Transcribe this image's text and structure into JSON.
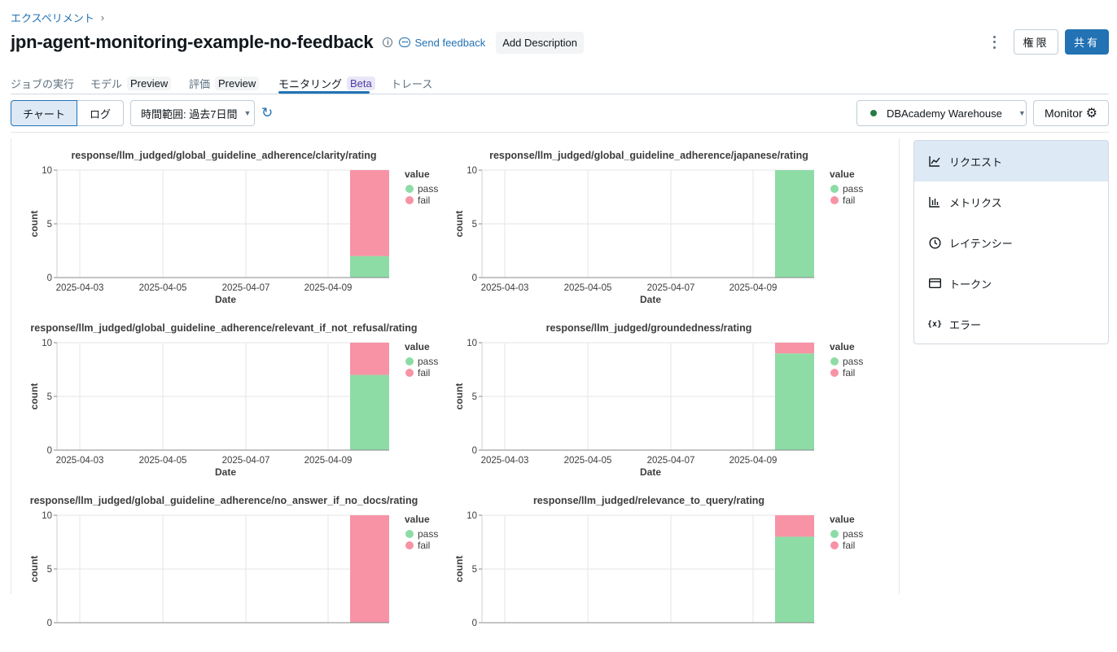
{
  "breadcrumb": {
    "label": "エクスペリメント",
    "chevron": "›"
  },
  "header": {
    "title": "jpn-agent-monitoring-example-no-feedback",
    "feedback_label": "Send feedback",
    "add_description_label": "Add Description",
    "permissions_label": "権限",
    "share_label": "共有"
  },
  "tabs": [
    {
      "label": "ジョブの実行",
      "badge": ""
    },
    {
      "label": "モデル",
      "badge": "Preview"
    },
    {
      "label": "評価",
      "badge": "Preview"
    },
    {
      "label": "モニタリング",
      "badge": "Beta"
    },
    {
      "label": "トレース",
      "badge": ""
    }
  ],
  "toolbar": {
    "chart_label": "チャート",
    "log_label": "ログ",
    "time_range_label": "時間範囲: 過去7日間",
    "warehouse_label": "DBAcademy Warehouse",
    "monitor_label": "Monitor"
  },
  "colors": {
    "accent": "#2272b4",
    "pass": "#8ddca6",
    "fail": "#f793a5",
    "warehouse_status": "#277c43"
  },
  "sidebar": {
    "items": [
      {
        "label": "リクエスト",
        "icon": "line-chart-icon",
        "active": true
      },
      {
        "label": "メトリクス",
        "icon": "bar-chart-icon",
        "active": false
      },
      {
        "label": "レイテンシー",
        "icon": "clock-icon",
        "active": false
      },
      {
        "label": "トークン",
        "icon": "token-card-icon",
        "active": false
      },
      {
        "label": "エラー",
        "icon": "function-icon",
        "active": false
      }
    ]
  },
  "chart_common": {
    "xlabel": "Date",
    "ylabel": "count",
    "x_ticks": [
      "2025-04-03",
      "2025-04-05",
      "2025-04-07",
      "2025-04-09"
    ],
    "y_ticks": [
      "0",
      "5",
      "10"
    ],
    "legend_title": "value",
    "legend": [
      "pass",
      "fail"
    ]
  },
  "chart_data": [
    {
      "type": "bar",
      "title": "response/llm_judged/global_guideline_adherence/clarity/rating",
      "xlabel": "Date",
      "ylabel": "count",
      "ylim": [
        0,
        10
      ],
      "categories": [
        "2025-04-10"
      ],
      "series": [
        {
          "name": "pass",
          "values": [
            2
          ]
        },
        {
          "name": "fail",
          "values": [
            8
          ]
        }
      ]
    },
    {
      "type": "bar",
      "title": "response/llm_judged/global_guideline_adherence/japanese/rating",
      "xlabel": "Date",
      "ylabel": "count",
      "ylim": [
        0,
        10
      ],
      "categories": [
        "2025-04-10"
      ],
      "series": [
        {
          "name": "pass",
          "values": [
            10
          ]
        },
        {
          "name": "fail",
          "values": [
            0
          ]
        }
      ]
    },
    {
      "type": "bar",
      "title": "response/llm_judged/global_guideline_adherence/relevant_if_not_refusal/rating",
      "xlabel": "Date",
      "ylabel": "count",
      "ylim": [
        0,
        10
      ],
      "categories": [
        "2025-04-10"
      ],
      "series": [
        {
          "name": "pass",
          "values": [
            7
          ]
        },
        {
          "name": "fail",
          "values": [
            3
          ]
        }
      ]
    },
    {
      "type": "bar",
      "title": "response/llm_judged/groundedness/rating",
      "xlabel": "Date",
      "ylabel": "count",
      "ylim": [
        0,
        10
      ],
      "categories": [
        "2025-04-10"
      ],
      "series": [
        {
          "name": "pass",
          "values": [
            9
          ]
        },
        {
          "name": "fail",
          "values": [
            1
          ]
        }
      ]
    },
    {
      "type": "bar",
      "title": "response/llm_judged/global_guideline_adherence/no_answer_if_no_docs/rating",
      "xlabel": "Date",
      "ylabel": "count",
      "ylim": [
        0,
        10
      ],
      "categories": [
        "2025-04-10"
      ],
      "series": [
        {
          "name": "pass",
          "values": [
            0
          ]
        },
        {
          "name": "fail",
          "values": [
            10
          ]
        }
      ]
    },
    {
      "type": "bar",
      "title": "response/llm_judged/relevance_to_query/rating",
      "xlabel": "Date",
      "ylabel": "count",
      "ylim": [
        0,
        10
      ],
      "categories": [
        "2025-04-10"
      ],
      "series": [
        {
          "name": "pass",
          "values": [
            8
          ]
        },
        {
          "name": "fail",
          "values": [
            2
          ]
        }
      ]
    }
  ]
}
